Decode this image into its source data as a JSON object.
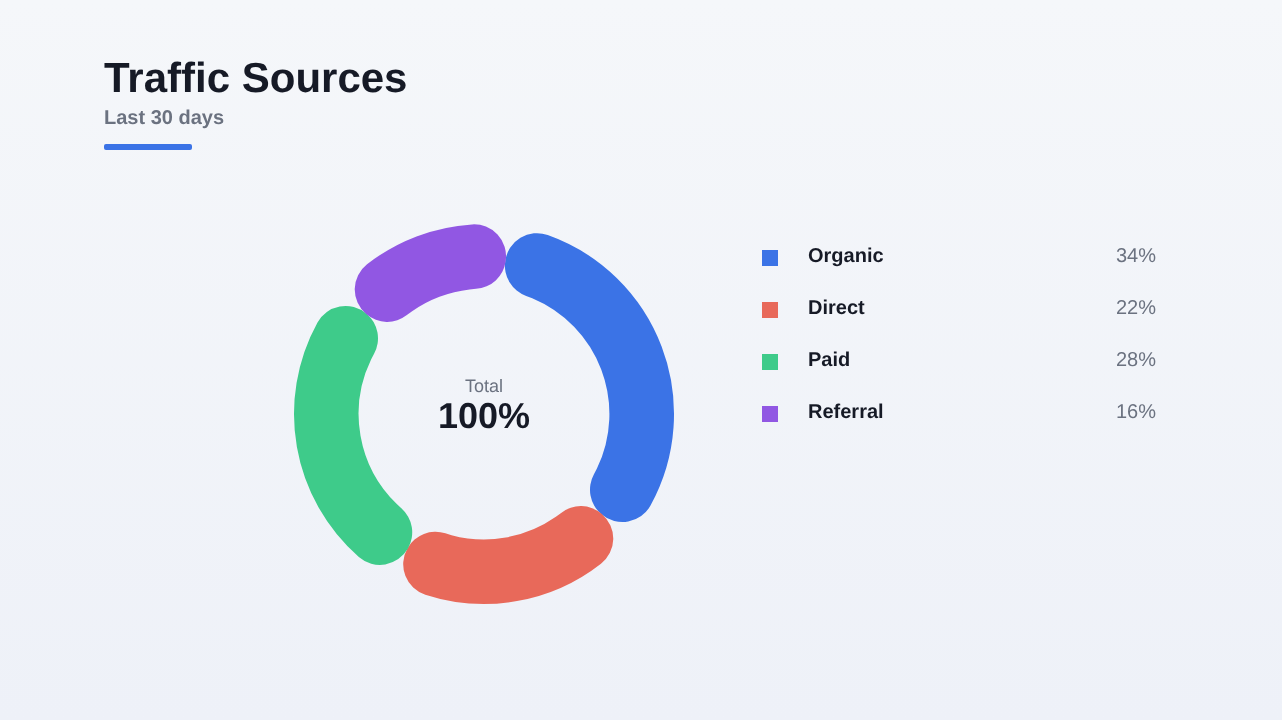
{
  "chart_data": {
    "type": "donut",
    "title": "Traffic Sources",
    "subtitle": "Last 30 days",
    "categories": [
      "Organic",
      "Direct",
      "Paid",
      "Referral"
    ],
    "values": [
      34,
      22,
      28,
      16
    ],
    "colors": [
      "#3b73e6",
      "#e8695a",
      "#3ecb8a",
      "#9157e3"
    ],
    "value_labels": [
      "34%",
      "22%",
      "28%",
      "16%"
    ],
    "annotations": [
      "Total",
      "100%"
    ],
    "legend": "right"
  }
}
